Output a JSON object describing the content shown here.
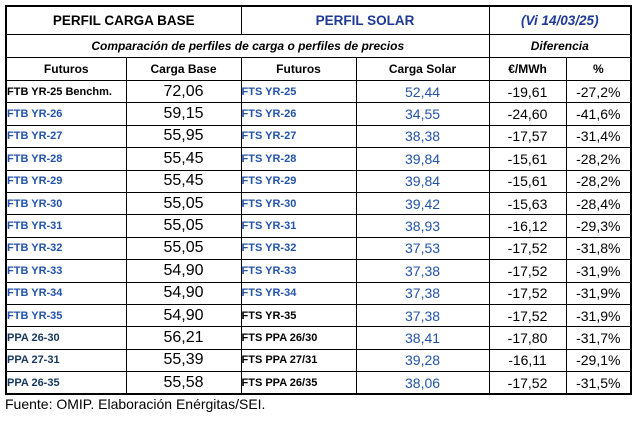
{
  "colors": {
    "accent_blue": "#2353A8",
    "header_blue": "#1E3A96",
    "ppa_navy": "#17375E",
    "text_black": "#000000",
    "border_black": "#000000",
    "background": "#FFFFFF"
  },
  "header": {
    "base_title": "PERFIL CARGA BASE",
    "solar_title": "PERFIL SOLAR",
    "date_label": "(Vi 14/03/25)",
    "subtitle": "Comparación de perfiles de carga o perfiles de precios",
    "diff_label": "Diferencia",
    "columns": [
      "Futuros",
      "Carga Base",
      "Futuros",
      "Carga Solar",
      "€/MWh",
      "%"
    ]
  },
  "table": {
    "rows": [
      {
        "futuro_base": "FTB YR-25 Benchm.",
        "base_style": "black",
        "carga_base": "72,06",
        "futuro_solar": "FTS YR-25",
        "solar_style": "blue",
        "carga_solar": "52,44",
        "diff_eur": "-19,61",
        "diff_pct": "-27,2%"
      },
      {
        "futuro_base": "FTB YR-26",
        "base_style": "blue",
        "carga_base": "59,15",
        "futuro_solar": "FTS YR-26",
        "solar_style": "blue",
        "carga_solar": "34,55",
        "diff_eur": "-24,60",
        "diff_pct": "-41,6%"
      },
      {
        "futuro_base": "FTB YR-27",
        "base_style": "blue",
        "carga_base": "55,95",
        "futuro_solar": "FTS YR-27",
        "solar_style": "blue",
        "carga_solar": "38,38",
        "diff_eur": "-17,57",
        "diff_pct": "-31,4%"
      },
      {
        "futuro_base": "FTB YR-28",
        "base_style": "blue",
        "carga_base": "55,45",
        "futuro_solar": "FTS YR-28",
        "solar_style": "blue",
        "carga_solar": "39,84",
        "diff_eur": "-15,61",
        "diff_pct": "-28,2%"
      },
      {
        "futuro_base": "FTB YR-29",
        "base_style": "blue",
        "carga_base": "55,45",
        "futuro_solar": "FTS YR-29",
        "solar_style": "blue",
        "carga_solar": "39,84",
        "diff_eur": "-15,61",
        "diff_pct": "-28,2%"
      },
      {
        "futuro_base": "FTB YR-30",
        "base_style": "blue",
        "carga_base": "55,05",
        "futuro_solar": "FTS YR-30",
        "solar_style": "blue",
        "carga_solar": "39,42",
        "diff_eur": "-15,63",
        "diff_pct": "-28,4%"
      },
      {
        "futuro_base": "FTB YR-31",
        "base_style": "blue",
        "carga_base": "55,05",
        "futuro_solar": "FTS YR-31",
        "solar_style": "blue",
        "carga_solar": "38,93",
        "diff_eur": "-16,12",
        "diff_pct": "-29,3%"
      },
      {
        "futuro_base": "FTB YR-32",
        "base_style": "blue",
        "carga_base": "55,05",
        "futuro_solar": "FTS YR-32",
        "solar_style": "blue",
        "carga_solar": "37,53",
        "diff_eur": "-17,52",
        "diff_pct": "-31,8%"
      },
      {
        "futuro_base": "FTB YR-33",
        "base_style": "blue",
        "carga_base": "54,90",
        "futuro_solar": "FTS YR-33",
        "solar_style": "blue",
        "carga_solar": "37,38",
        "diff_eur": "-17,52",
        "diff_pct": "-31,9%"
      },
      {
        "futuro_base": "FTB YR-34",
        "base_style": "blue",
        "carga_base": "54,90",
        "futuro_solar": "FTS YR-34",
        "solar_style": "blue",
        "carga_solar": "37,38",
        "diff_eur": "-17,52",
        "diff_pct": "-31,9%"
      },
      {
        "futuro_base": "FTB YR-35",
        "base_style": "blue",
        "carga_base": "54,90",
        "futuro_solar": "FTS YR-35",
        "solar_style": "black",
        "carga_solar": "37,38",
        "diff_eur": "-17,52",
        "diff_pct": "-31,9%"
      },
      {
        "futuro_base": "PPA 26-30",
        "base_style": "navy",
        "carga_base": "56,21",
        "futuro_solar": "FTS PPA 26/30",
        "solar_style": "black",
        "carga_solar": "38,41",
        "diff_eur": "-17,80",
        "diff_pct": "-31,7%"
      },
      {
        "futuro_base": "PPA 27-31",
        "base_style": "navy",
        "carga_base": "55,39",
        "futuro_solar": "FTS PPA 27/31",
        "solar_style": "black",
        "carga_solar": "39,28",
        "diff_eur": "-16,11",
        "diff_pct": "-29,1%"
      },
      {
        "futuro_base": "PPA 26-35",
        "base_style": "navy",
        "carga_base": "55,58",
        "futuro_solar": "FTS PPA 26/35",
        "solar_style": "black",
        "carga_solar": "38,06",
        "diff_eur": "-17,52",
        "diff_pct": "-31,5%"
      }
    ]
  },
  "footer": {
    "source": "Fuente: OMIP. Elaboración Enérgitas/SEI."
  },
  "chart_data": {
    "type": "table",
    "title": "Comparación de perfiles de carga o perfiles de precios",
    "date": "Vi 14/03/25",
    "columns": [
      "Futuros (Carga Base)",
      "Carga Base €/MWh",
      "Futuros (Solar)",
      "Carga Solar €/MWh",
      "Diferencia €/MWh",
      "Diferencia %"
    ],
    "rows": [
      [
        "FTB YR-25 Benchm.",
        72.06,
        "FTS YR-25",
        52.44,
        -19.61,
        -27.2
      ],
      [
        "FTB YR-26",
        59.15,
        "FTS YR-26",
        34.55,
        -24.6,
        -41.6
      ],
      [
        "FTB YR-27",
        55.95,
        "FTS YR-27",
        38.38,
        -17.57,
        -31.4
      ],
      [
        "FTB YR-28",
        55.45,
        "FTS YR-28",
        39.84,
        -15.61,
        -28.2
      ],
      [
        "FTB YR-29",
        55.45,
        "FTS YR-29",
        39.84,
        -15.61,
        -28.2
      ],
      [
        "FTB YR-30",
        55.05,
        "FTS YR-30",
        39.42,
        -15.63,
        -28.4
      ],
      [
        "FTB YR-31",
        55.05,
        "FTS YR-31",
        38.93,
        -16.12,
        -29.3
      ],
      [
        "FTB YR-32",
        55.05,
        "FTS YR-32",
        37.53,
        -17.52,
        -31.8
      ],
      [
        "FTB YR-33",
        54.9,
        "FTS YR-33",
        37.38,
        -17.52,
        -31.9
      ],
      [
        "FTB YR-34",
        54.9,
        "FTS YR-34",
        37.38,
        -17.52,
        -31.9
      ],
      [
        "FTB YR-35",
        54.9,
        "FTS YR-35",
        37.38,
        -17.52,
        -31.9
      ],
      [
        "PPA 26-30",
        56.21,
        "FTS PPA 26/30",
        38.41,
        -17.8,
        -31.7
      ],
      [
        "PPA 27-31",
        55.39,
        "FTS PPA 27/31",
        39.28,
        -16.11,
        -29.1
      ],
      [
        "PPA 26-35",
        55.58,
        "FTS PPA 26/35",
        38.06,
        -17.52,
        -31.5
      ]
    ],
    "source": "Fuente: OMIP. Elaboración Enérgitas/SEI."
  }
}
